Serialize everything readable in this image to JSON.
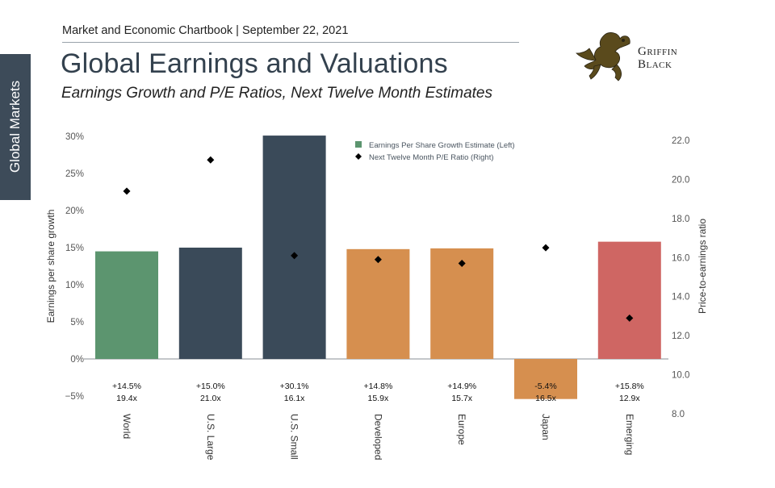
{
  "header": {
    "source_line": "Market and Economic Chartbook | September 22, 2021",
    "title": "Global Earnings and Valuations",
    "subtitle": "Earnings Growth and P/E Ratios, Next Twelve Month Estimates"
  },
  "side_tab": {
    "label": "Global Markets"
  },
  "logo": {
    "line1": "Griffin",
    "line2": "Black",
    "icon": "griffin-icon"
  },
  "colors": {
    "green": "#5c956f",
    "navy": "#3a4a59",
    "orange": "#d68f4f",
    "red": "#cf6663",
    "marker": "#000000"
  },
  "chart_data": {
    "type": "bar",
    "categories": [
      "World",
      "U.S. Large",
      "U.S. Small",
      "Developed",
      "Europe",
      "Japan",
      "Emerging"
    ],
    "series": [
      {
        "name": "Earnings Per Share Growth Estimate (Left)",
        "type": "bar",
        "axis": "left",
        "values": [
          14.5,
          15.0,
          30.1,
          14.8,
          14.9,
          -5.4,
          15.8
        ]
      },
      {
        "name": "Next Twelve Month P/E Ratio (Right)",
        "type": "scatter",
        "axis": "right",
        "values": [
          19.4,
          21.0,
          16.1,
          15.9,
          15.7,
          16.5,
          12.9
        ]
      }
    ],
    "bar_colors": [
      "green",
      "navy",
      "navy",
      "orange",
      "orange",
      "orange",
      "red"
    ],
    "data_labels": {
      "growth": [
        "+14.5%",
        "+15.0%",
        "+30.1%",
        "+14.8%",
        "+14.9%",
        "-5.4%",
        "+15.8%"
      ],
      "pe": [
        "19.4x",
        "21.0x",
        "16.1x",
        "15.9x",
        "15.7x",
        "16.5x",
        "12.9x"
      ]
    },
    "y_left": {
      "label": "Earnings per share growth",
      "range": [
        -5,
        30
      ],
      "ticks": [
        30,
        25,
        20,
        15,
        10,
        5,
        0,
        -5
      ],
      "tick_labels": [
        "30%",
        "25%",
        "20%",
        "15%",
        "10%",
        "5%",
        "0%",
        "−5%"
      ]
    },
    "y_right": {
      "label": "Price-to-earnings ratio",
      "range": [
        8,
        22
      ],
      "ticks": [
        22,
        20,
        18,
        16,
        14,
        12,
        10,
        8
      ],
      "tick_labels": [
        "22.0",
        "20.0",
        "18.0",
        "16.0",
        "14.0",
        "12.0",
        "10.0",
        "8.0"
      ]
    },
    "legend_position": "top-right",
    "grid": false
  }
}
